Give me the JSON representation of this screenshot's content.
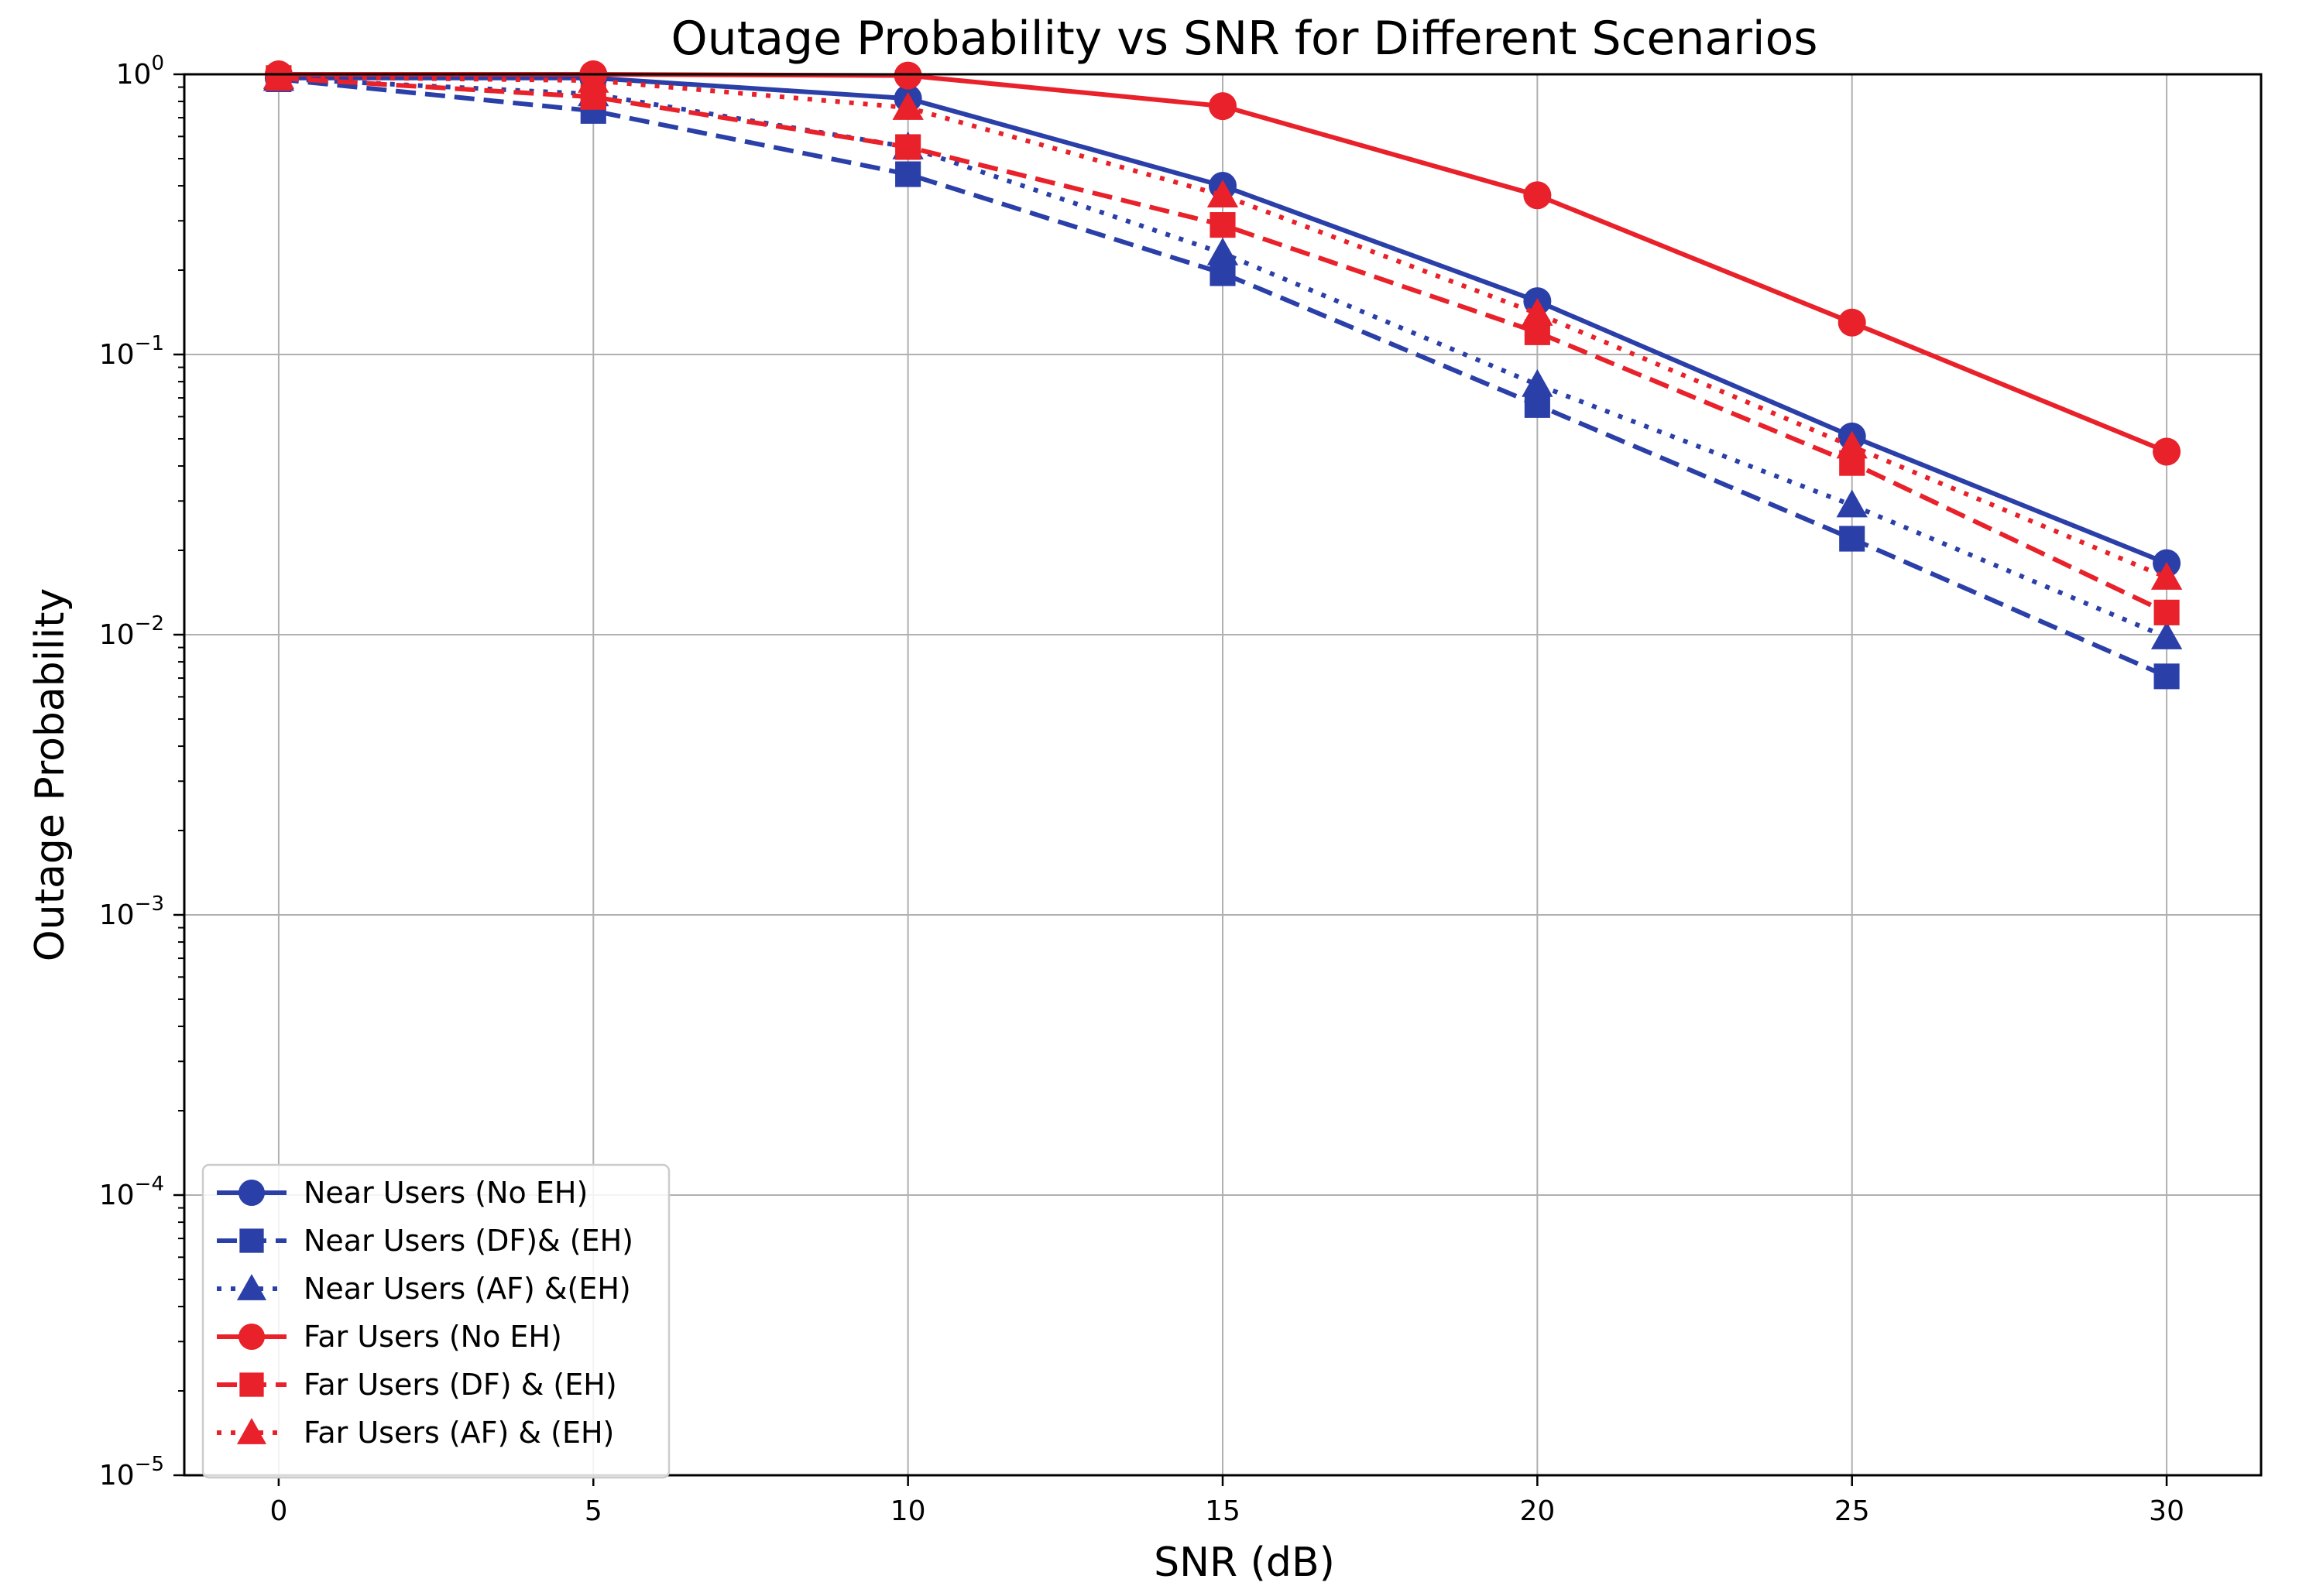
{
  "chart_data": {
    "type": "line",
    "title": "Outage Probability vs SNR for Different Scenarios",
    "xlabel": "SNR (dB)",
    "ylabel": "Outage Probability",
    "yscale": "log",
    "xlim": [
      -1.5,
      31.5
    ],
    "ylim": [
      1e-05,
      1
    ],
    "x": [
      0,
      5,
      10,
      15,
      20,
      25,
      30
    ],
    "xticks": [
      "0",
      "5",
      "10",
      "15",
      "20",
      "25",
      "30"
    ],
    "yticks": [
      {
        "base": "10",
        "exp": "0",
        "value": 1
      },
      {
        "base": "10",
        "exp": "−1",
        "value": 0.1
      },
      {
        "base": "10",
        "exp": "−2",
        "value": 0.01
      },
      {
        "base": "10",
        "exp": "−3",
        "value": 0.001
      },
      {
        "base": "10",
        "exp": "−4",
        "value": 0.0001
      },
      {
        "base": "10",
        "exp": "−5",
        "value": 1e-05
      }
    ],
    "grid": true,
    "legend_position": "lower-left",
    "series": [
      {
        "name": "Near Users (No EH)",
        "color": "#2b3fa8",
        "line": "solid",
        "marker": "circle",
        "values": [
          0.97,
          0.97,
          0.82,
          0.4,
          0.155,
          0.051,
          0.018
        ]
      },
      {
        "name": "Near Users (DF)& (EH)",
        "color": "#2b3fa8",
        "line": "dashed",
        "marker": "square",
        "values": [
          0.96,
          0.74,
          0.44,
          0.195,
          0.066,
          0.022,
          0.0071
        ]
      },
      {
        "name": "Near Users (AF) &(EH)",
        "color": "#2b3fa8",
        "line": "dotted",
        "marker": "triangle",
        "values": [
          0.965,
          0.85,
          0.55,
          0.23,
          0.078,
          0.029,
          0.0098
        ]
      },
      {
        "name": "Far Users (No EH)",
        "color": "#e8212a",
        "line": "solid",
        "marker": "circle",
        "values": [
          1.0,
          1.0,
          0.99,
          0.77,
          0.37,
          0.13,
          0.045
        ]
      },
      {
        "name": "Far Users (DF) & (EH)",
        "color": "#e8212a",
        "line": "dashed",
        "marker": "square",
        "values": [
          0.97,
          0.83,
          0.55,
          0.29,
          0.12,
          0.041,
          0.012
        ]
      },
      {
        "name": "Far Users (AF) & (EH)",
        "color": "#e8212a",
        "line": "dotted",
        "marker": "triangle",
        "values": [
          0.98,
          0.95,
          0.76,
          0.37,
          0.14,
          0.047,
          0.016
        ]
      }
    ]
  }
}
